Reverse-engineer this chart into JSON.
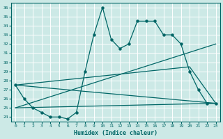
{
  "xlabel": "Humidex (Indice chaleur)",
  "bg_color": "#cce9e6",
  "grid_color": "#ffffff",
  "line_color": "#006666",
  "xlim": [
    -0.5,
    23.5
  ],
  "ylim": [
    23.5,
    36.5
  ],
  "xticks": [
    0,
    1,
    2,
    3,
    4,
    5,
    6,
    7,
    8,
    9,
    10,
    11,
    12,
    13,
    14,
    15,
    16,
    17,
    18,
    19,
    20,
    21,
    22,
    23
  ],
  "yticks": [
    24,
    25,
    26,
    27,
    28,
    29,
    30,
    31,
    32,
    33,
    34,
    35,
    36
  ],
  "line1_x": [
    0,
    1,
    2,
    3,
    4,
    5,
    6,
    7,
    8,
    9,
    10,
    11,
    12,
    13,
    14,
    15,
    16,
    17,
    18,
    19,
    20,
    21,
    22,
    23
  ],
  "line1_y": [
    27.5,
    26.0,
    25.0,
    24.5,
    24.0,
    24.0,
    23.8,
    24.5,
    29.0,
    33.0,
    36.0,
    32.5,
    31.5,
    32.0,
    34.5,
    34.5,
    34.5,
    33.0,
    33.0,
    32.0,
    29.0,
    27.0,
    25.5,
    25.5
  ],
  "line2_x": [
    0,
    23
  ],
  "line2_y": [
    25.0,
    25.5
  ],
  "line3_x": [
    0,
    23
  ],
  "line3_y": [
    25.0,
    32.0
  ],
  "line4_x": [
    0,
    20,
    23
  ],
  "line4_y": [
    27.5,
    29.5,
    25.5
  ],
  "line5_x": [
    0,
    23
  ],
  "line5_y": [
    27.5,
    25.5
  ]
}
